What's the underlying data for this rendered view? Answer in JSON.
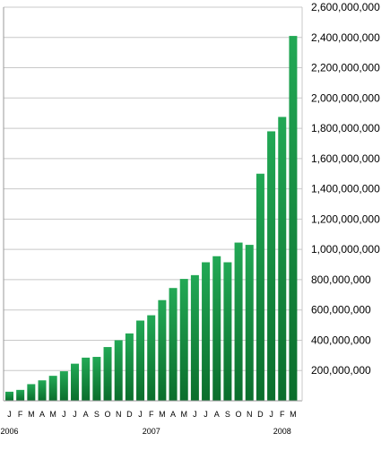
{
  "chart_data": {
    "type": "bar",
    "categories": [
      "J",
      "F",
      "M",
      "A",
      "M",
      "J",
      "J",
      "A",
      "S",
      "O",
      "N",
      "D",
      "J",
      "F",
      "M",
      "A",
      "M",
      "J",
      "J",
      "A",
      "S",
      "O",
      "N",
      "D",
      "J",
      "F",
      "M"
    ],
    "values": [
      60000000,
      72000000,
      110000000,
      135000000,
      165000000,
      195000000,
      245000000,
      285000000,
      290000000,
      355000000,
      400000000,
      445000000,
      530000000,
      565000000,
      665000000,
      745000000,
      805000000,
      830000000,
      915000000,
      955000000,
      915000000,
      1045000000,
      1030000000,
      1500000000,
      1780000000,
      1875000000,
      2410000000
    ],
    "year_labels": [
      {
        "label": "2006",
        "index": 0
      },
      {
        "label": "2007",
        "index": 13
      },
      {
        "label": "2008",
        "index": 25
      }
    ],
    "y_ticks": [
      200000000,
      400000000,
      600000000,
      800000000,
      1000000000,
      1200000000,
      1400000000,
      1600000000,
      1800000000,
      2000000000,
      2200000000,
      2400000000,
      2600000000
    ],
    "y_tick_labels": [
      "200,000,000",
      "400,000,000",
      "600,000,000",
      "800,000,000",
      "1,000,000,000",
      "1,200,000,000",
      "1,400,000,000",
      "1,600,000,000",
      "1,800,000,000",
      "2,000,000,000",
      "2,200,000,000",
      "2,400,000,000",
      "2,600,000,000"
    ],
    "ylim": [
      0,
      2600000000
    ],
    "grid": true,
    "y_axis_side": "right",
    "title": "",
    "xlabel": "",
    "ylabel": "",
    "colors": {
      "bar_top": "#22a855",
      "bar_bottom": "#0b6e2c",
      "grid": "#c8c8c8",
      "axis": "#999999"
    }
  }
}
